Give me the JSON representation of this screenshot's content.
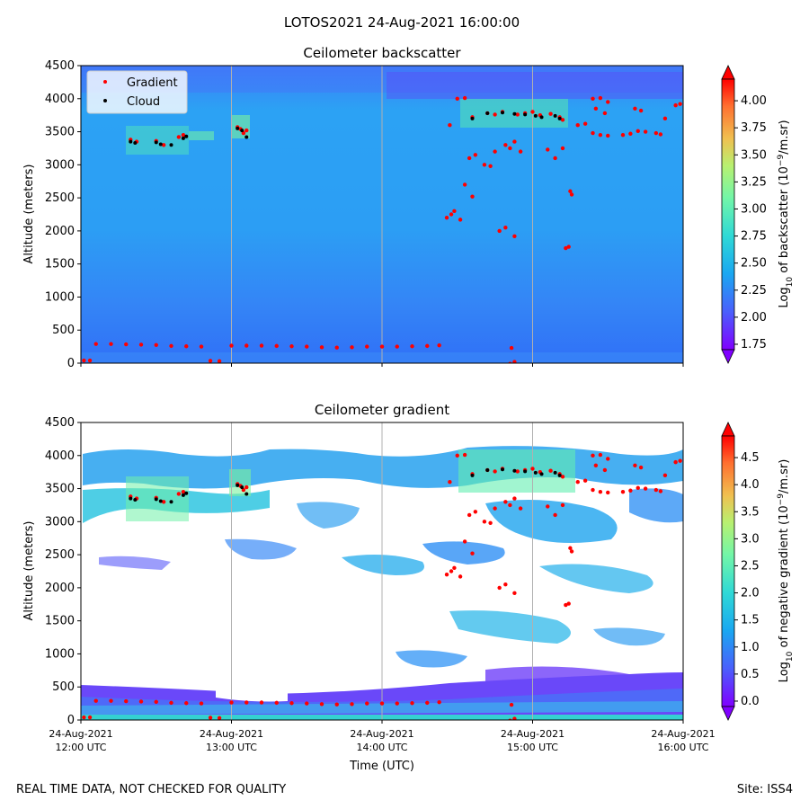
{
  "figure_title": "LOTOS2021 24-Aug-2021 16:00:00",
  "footer_left": "REAL TIME DATA, NOT CHECKED FOR QUALITY",
  "footer_right": "Site: ISS4",
  "colors": {
    "gradient_marker": "#ff0000",
    "cloud_marker": "#000000",
    "gridline": "#b0b0b0"
  },
  "chart_data": [
    {
      "type": "heatmap",
      "title": "Ceilometer backscatter",
      "ylabel": "Altitude (meters)",
      "ylim": [
        0,
        4500
      ],
      "yticks": [
        "0",
        "500",
        "1000",
        "1500",
        "2000",
        "2500",
        "3000",
        "3500",
        "4000",
        "4500"
      ],
      "xlim_hours_utc": [
        12,
        16
      ],
      "x_gridlines_hours": [
        13,
        14,
        15
      ],
      "colormap": "rainbow",
      "colorbar": {
        "label_prefix": "Log",
        "label_sub": "10",
        "label_mid": " of backscatter (10",
        "label_sup": "−9",
        "label_suffix": "/m.sr)",
        "range": [
          1.7,
          4.2
        ],
        "ticks": [
          "1.75",
          "2.00",
          "2.25",
          "2.50",
          "2.75",
          "3.00",
          "3.25",
          "3.50",
          "3.75",
          "4.00"
        ],
        "extend": "both"
      },
      "legend": {
        "placement": "top-left",
        "entries": [
          "Gradient",
          "Cloud"
        ]
      }
    },
    {
      "type": "heatmap",
      "title": "Ceilometer gradient",
      "ylabel": "Altitude (meters)",
      "xlabel": "Time (UTC)",
      "ylim": [
        0,
        4500
      ],
      "yticks": [
        "0",
        "500",
        "1000",
        "1500",
        "2000",
        "2500",
        "3000",
        "3500",
        "4000",
        "4500"
      ],
      "xticks": [
        {
          "hour": 12,
          "line1": "24-Aug-2021",
          "line2": "12:00 UTC"
        },
        {
          "hour": 13,
          "line1": "24-Aug-2021",
          "line2": "13:00 UTC"
        },
        {
          "hour": 14,
          "line1": "24-Aug-2021",
          "line2": "14:00 UTC"
        },
        {
          "hour": 15,
          "line1": "24-Aug-2021",
          "line2": "15:00 UTC"
        },
        {
          "hour": 16,
          "line1": "24-Aug-2021",
          "line2": "16:00 UTC"
        }
      ],
      "xlim_hours_utc": [
        12,
        16
      ],
      "x_gridlines_hours": [
        13,
        14,
        15
      ],
      "colormap": "rainbow",
      "colorbar": {
        "label_prefix": "Log",
        "label_sub": "10",
        "label_mid": " of negative gradient (10",
        "label_sup": "−9",
        "label_suffix": "/m.sr)",
        "range": [
          -0.1,
          4.9
        ],
        "ticks": [
          "0.0",
          "0.5",
          "1.0",
          "1.5",
          "2.0",
          "2.5",
          "3.0",
          "3.5",
          "4.0",
          "4.5"
        ],
        "extend": "both"
      }
    }
  ],
  "series": {
    "gradient_markers": [
      [
        12.02,
        40
      ],
      [
        12.06,
        40
      ],
      [
        12.1,
        290
      ],
      [
        12.2,
        290
      ],
      [
        12.3,
        285
      ],
      [
        12.4,
        280
      ],
      [
        12.5,
        275
      ],
      [
        12.6,
        260
      ],
      [
        12.7,
        255
      ],
      [
        12.8,
        250
      ],
      [
        12.86,
        35
      ],
      [
        12.92,
        30
      ],
      [
        13.0,
        265
      ],
      [
        13.1,
        265
      ],
      [
        13.2,
        265
      ],
      [
        13.3,
        260
      ],
      [
        13.4,
        255
      ],
      [
        13.5,
        250
      ],
      [
        13.6,
        240
      ],
      [
        13.7,
        235
      ],
      [
        13.8,
        240
      ],
      [
        13.9,
        250
      ],
      [
        14.0,
        250
      ],
      [
        14.1,
        250
      ],
      [
        14.2,
        255
      ],
      [
        14.3,
        260
      ],
      [
        14.38,
        270
      ],
      [
        12.33,
        3380
      ],
      [
        12.37,
        3350
      ],
      [
        12.5,
        3360
      ],
      [
        12.55,
        3300
      ],
      [
        12.65,
        3420
      ],
      [
        12.68,
        3450
      ],
      [
        13.04,
        3570
      ],
      [
        13.06,
        3540
      ],
      [
        13.1,
        3520
      ],
      [
        13.08,
        3480
      ],
      [
        14.45,
        3600
      ],
      [
        14.5,
        4000
      ],
      [
        14.55,
        4010
      ],
      [
        14.6,
        3720
      ],
      [
        14.7,
        3780
      ],
      [
        14.75,
        3760
      ],
      [
        14.8,
        3800
      ],
      [
        14.9,
        3760
      ],
      [
        14.95,
        3780
      ],
      [
        15.0,
        3800
      ],
      [
        15.05,
        3750
      ],
      [
        15.12,
        3770
      ],
      [
        15.18,
        3720
      ],
      [
        15.2,
        3680
      ],
      [
        15.3,
        3600
      ],
      [
        15.35,
        3620
      ],
      [
        15.4,
        3480
      ],
      [
        15.45,
        3450
      ],
      [
        15.5,
        3440
      ],
      [
        15.6,
        3450
      ],
      [
        15.65,
        3470
      ],
      [
        15.7,
        3510
      ],
      [
        15.75,
        3500
      ],
      [
        15.82,
        3480
      ],
      [
        15.85,
        3460
      ],
      [
        15.95,
        3900
      ],
      [
        15.98,
        3920
      ],
      [
        15.88,
        3700
      ],
      [
        15.72,
        3820
      ],
      [
        15.68,
        3850
      ],
      [
        15.5,
        3950
      ],
      [
        15.45,
        4010
      ],
      [
        15.4,
        4000
      ],
      [
        15.42,
        3850
      ],
      [
        15.48,
        3780
      ],
      [
        14.43,
        2200
      ],
      [
        14.46,
        2250
      ],
      [
        14.48,
        2300
      ],
      [
        14.52,
        2170
      ],
      [
        14.55,
        2700
      ],
      [
        14.6,
        2520
      ],
      [
        14.58,
        3100
      ],
      [
        14.62,
        3150
      ],
      [
        14.68,
        3000
      ],
      [
        14.72,
        2980
      ],
      [
        14.75,
        3200
      ],
      [
        14.82,
        3300
      ],
      [
        14.85,
        3250
      ],
      [
        14.88,
        3350
      ],
      [
        14.92,
        3200
      ],
      [
        14.78,
        2000
      ],
      [
        14.82,
        2050
      ],
      [
        14.88,
        1920
      ],
      [
        15.1,
        3230
      ],
      [
        15.15,
        3100
      ],
      [
        15.2,
        3250
      ],
      [
        15.25,
        2600
      ],
      [
        15.26,
        2550
      ],
      [
        15.22,
        1740
      ],
      [
        15.24,
        1760
      ],
      [
        14.86,
        230
      ],
      [
        14.88,
        20
      ],
      [
        14.85,
        -10
      ]
    ],
    "cloud_markers": [
      [
        12.33,
        3350
      ],
      [
        12.36,
        3330
      ],
      [
        12.5,
        3340
      ],
      [
        12.53,
        3310
      ],
      [
        12.6,
        3300
      ],
      [
        12.68,
        3400
      ],
      [
        12.7,
        3430
      ],
      [
        13.04,
        3550
      ],
      [
        13.07,
        3520
      ],
      [
        13.1,
        3420
      ],
      [
        14.6,
        3700
      ],
      [
        14.7,
        3780
      ],
      [
        14.8,
        3790
      ],
      [
        14.88,
        3770
      ],
      [
        14.95,
        3760
      ],
      [
        15.02,
        3740
      ],
      [
        15.06,
        3720
      ],
      [
        15.15,
        3740
      ],
      [
        15.18,
        3700
      ]
    ]
  }
}
